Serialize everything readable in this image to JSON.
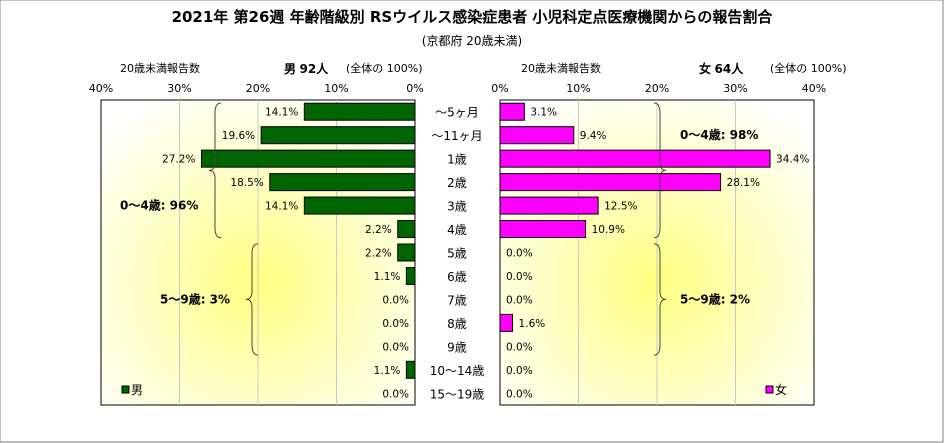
{
  "title": "2021年 第26週 年齢階級別 RSウイルス感染症患者 小児科定点医療機関からの報告割合",
  "subtitle": "(京都府 20歳未満)",
  "left_header": {
    "label": "20歳未満報告数",
    "sex": "男",
    "count": "92人",
    "note": "(全体の 100%)"
  },
  "right_header": {
    "label": "20歳未満報告数",
    "sex": "女",
    "count": "64人",
    "note": "(全体の 100%)"
  },
  "chart_data": {
    "type": "bar",
    "orientation": "horizontal-butterfly",
    "categories": [
      "〜5ヶ月",
      "〜11ヶ月",
      "1歳",
      "2歳",
      "3歳",
      "4歳",
      "5歳",
      "6歳",
      "7歳",
      "8歳",
      "9歳",
      "10〜14歳",
      "15〜19歳"
    ],
    "xlim": [
      0,
      40
    ],
    "xticks": [
      "40%",
      "30%",
      "20%",
      "10%",
      "0%"
    ],
    "xticks_right": [
      "0%",
      "10%",
      "20%",
      "30%",
      "40%"
    ],
    "series": [
      {
        "name": "男",
        "color": "#006400",
        "values": [
          14.1,
          19.6,
          27.2,
          18.5,
          14.1,
          2.2,
          2.2,
          1.1,
          0.0,
          0.0,
          0.0,
          1.1,
          0.0
        ],
        "labels": [
          "14.1%",
          "19.6%",
          "27.2%",
          "18.5%",
          "14.1%",
          "2.2%",
          "2.2%",
          "1.1%",
          "0.0%",
          "0.0%",
          "0.0%",
          "1.1%",
          "0.0%"
        ]
      },
      {
        "name": "女",
        "color": "#ff00ff",
        "values": [
          3.1,
          9.4,
          34.4,
          28.1,
          12.5,
          10.9,
          0.0,
          0.0,
          0.0,
          1.6,
          0.0,
          0.0,
          0.0
        ],
        "labels": [
          "3.1%",
          "9.4%",
          "34.4%",
          "28.1%",
          "12.5%",
          "10.9%",
          "0.0%",
          "0.0%",
          "0.0%",
          "1.6%",
          "0.0%",
          "0.0%",
          "0.0%"
        ]
      }
    ],
    "annotations": {
      "left_group1": "0〜4歳: 96%",
      "left_group2": "5〜9歳: 3%",
      "right_group1": "0〜4歳: 98%",
      "right_group2": "5〜9歳: 2%"
    },
    "legend": {
      "male": "男",
      "female": "女",
      "placement": "bottom"
    },
    "grid": true
  }
}
